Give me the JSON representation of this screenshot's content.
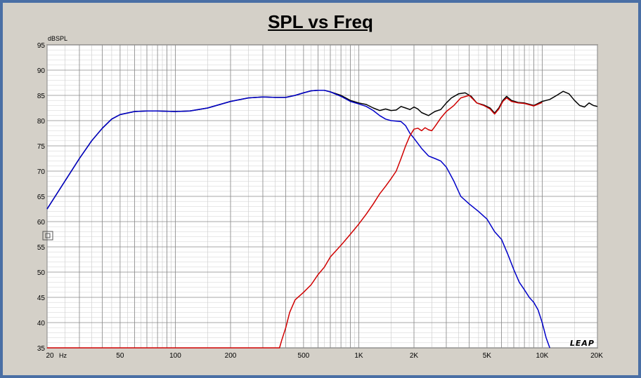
{
  "chart_data": {
    "type": "line",
    "title": "SPL vs Freq",
    "ylabel": "dBSPL",
    "xunit": "Hz",
    "x_scale": "log",
    "xlim": [
      20,
      20000
    ],
    "ylim": [
      35,
      95
    ],
    "grid": true,
    "yticks": [
      35,
      40,
      45,
      50,
      55,
      60,
      65,
      70,
      75,
      80,
      85,
      90,
      95
    ],
    "xticks": [
      {
        "value": 20,
        "label": "20"
      },
      {
        "value": 50,
        "label": "50"
      },
      {
        "value": 100,
        "label": "100"
      },
      {
        "value": 200,
        "label": "200"
      },
      {
        "value": 500,
        "label": "500"
      },
      {
        "value": 1000,
        "label": "1K"
      },
      {
        "value": 2000,
        "label": "2K"
      },
      {
        "value": 5000,
        "label": "5K"
      },
      {
        "value": 10000,
        "label": "10K"
      },
      {
        "value": 20000,
        "label": "20K"
      }
    ],
    "series": [
      {
        "color": "#000000",
        "points": [
          [
            20,
            62.5
          ],
          [
            25,
            68
          ],
          [
            30,
            72.5
          ],
          [
            35,
            76
          ],
          [
            40,
            78.5
          ],
          [
            45,
            80.3
          ],
          [
            50,
            81.2
          ],
          [
            60,
            81.8
          ],
          [
            70,
            81.9
          ],
          [
            80,
            81.9
          ],
          [
            100,
            81.8
          ],
          [
            120,
            81.9
          ],
          [
            150,
            82.5
          ],
          [
            200,
            83.8
          ],
          [
            250,
            84.5
          ],
          [
            300,
            84.7
          ],
          [
            350,
            84.6
          ],
          [
            400,
            84.6
          ],
          [
            450,
            85.0
          ],
          [
            500,
            85.5
          ],
          [
            550,
            85.9
          ],
          [
            600,
            86.0
          ],
          [
            650,
            86.0
          ],
          [
            700,
            85.7
          ],
          [
            800,
            85.0
          ],
          [
            900,
            84.0
          ],
          [
            1000,
            83.5
          ],
          [
            1100,
            83.2
          ],
          [
            1200,
            82.5
          ],
          [
            1300,
            82.0
          ],
          [
            1400,
            82.3
          ],
          [
            1500,
            82.0
          ],
          [
            1600,
            82.1
          ],
          [
            1700,
            82.8
          ],
          [
            1800,
            82.5
          ],
          [
            1900,
            82.2
          ],
          [
            2000,
            82.7
          ],
          [
            2100,
            82.3
          ],
          [
            2200,
            81.6
          ],
          [
            2400,
            81.0
          ],
          [
            2600,
            81.8
          ],
          [
            2800,
            82.2
          ],
          [
            3000,
            83.5
          ],
          [
            3200,
            84.5
          ],
          [
            3500,
            85.3
          ],
          [
            3800,
            85.5
          ],
          [
            4100,
            84.8
          ],
          [
            4400,
            83.5
          ],
          [
            4800,
            83.1
          ],
          [
            5200,
            82.5
          ],
          [
            5500,
            81.5
          ],
          [
            5800,
            82.5
          ],
          [
            6100,
            84.0
          ],
          [
            6400,
            84.8
          ],
          [
            6800,
            84.0
          ],
          [
            7400,
            83.6
          ],
          [
            8000,
            83.5
          ],
          [
            9000,
            83.0
          ],
          [
            10000,
            83.8
          ],
          [
            11000,
            84.2
          ],
          [
            12000,
            85.0
          ],
          [
            13000,
            85.8
          ],
          [
            14000,
            85.3
          ],
          [
            15000,
            84.0
          ],
          [
            16000,
            83.0
          ],
          [
            17000,
            82.7
          ],
          [
            18000,
            83.5
          ],
          [
            19000,
            83.0
          ],
          [
            20000,
            82.8
          ]
        ]
      },
      {
        "color": "#0000c8",
        "points": [
          [
            20,
            62.5
          ],
          [
            25,
            68
          ],
          [
            30,
            72.5
          ],
          [
            35,
            76
          ],
          [
            40,
            78.5
          ],
          [
            45,
            80.3
          ],
          [
            50,
            81.2
          ],
          [
            60,
            81.8
          ],
          [
            70,
            81.9
          ],
          [
            80,
            81.9
          ],
          [
            100,
            81.8
          ],
          [
            120,
            81.9
          ],
          [
            150,
            82.5
          ],
          [
            200,
            83.8
          ],
          [
            250,
            84.5
          ],
          [
            300,
            84.7
          ],
          [
            350,
            84.6
          ],
          [
            400,
            84.6
          ],
          [
            450,
            85.0
          ],
          [
            500,
            85.5
          ],
          [
            550,
            85.9
          ],
          [
            600,
            86.0
          ],
          [
            650,
            86.0
          ],
          [
            700,
            85.7
          ],
          [
            800,
            84.8
          ],
          [
            900,
            83.8
          ],
          [
            1000,
            83.3
          ],
          [
            1100,
            82.8
          ],
          [
            1200,
            82.0
          ],
          [
            1300,
            81.0
          ],
          [
            1400,
            80.3
          ],
          [
            1500,
            80.0
          ],
          [
            1700,
            79.8
          ],
          [
            1800,
            79.0
          ],
          [
            1900,
            77.5
          ],
          [
            2000,
            76.5
          ],
          [
            2200,
            74.5
          ],
          [
            2400,
            73.0
          ],
          [
            2600,
            72.5
          ],
          [
            2800,
            72.0
          ],
          [
            3000,
            70.8
          ],
          [
            3300,
            68.0
          ],
          [
            3600,
            65.0
          ],
          [
            4000,
            63.5
          ],
          [
            4500,
            62.0
          ],
          [
            5000,
            60.5
          ],
          [
            5500,
            58.0
          ],
          [
            6000,
            56.5
          ],
          [
            6500,
            53.5
          ],
          [
            7000,
            50.5
          ],
          [
            7500,
            48.0
          ],
          [
            8000,
            46.5
          ],
          [
            8500,
            45.0
          ],
          [
            9000,
            44.0
          ],
          [
            9500,
            42.5
          ],
          [
            10000,
            40.0
          ],
          [
            10500,
            37.0
          ],
          [
            11000,
            35.0
          ]
        ]
      },
      {
        "color": "#d00000",
        "points": [
          [
            20,
            35
          ],
          [
            100,
            35
          ],
          [
            200,
            35
          ],
          [
            370,
            35
          ],
          [
            380,
            36.5
          ],
          [
            400,
            39
          ],
          [
            420,
            42
          ],
          [
            450,
            44.5
          ],
          [
            500,
            46
          ],
          [
            550,
            47.5
          ],
          [
            600,
            49.5
          ],
          [
            650,
            51
          ],
          [
            700,
            53
          ],
          [
            800,
            55.3
          ],
          [
            900,
            57.5
          ],
          [
            1000,
            59.5
          ],
          [
            1100,
            61.5
          ],
          [
            1200,
            63.5
          ],
          [
            1300,
            65.5
          ],
          [
            1400,
            67
          ],
          [
            1500,
            68.5
          ],
          [
            1600,
            70
          ],
          [
            1700,
            72.5
          ],
          [
            1800,
            75
          ],
          [
            1900,
            77
          ],
          [
            2000,
            78.3
          ],
          [
            2100,
            78.5
          ],
          [
            2200,
            78.0
          ],
          [
            2300,
            78.6
          ],
          [
            2400,
            78.2
          ],
          [
            2500,
            78.0
          ],
          [
            2600,
            78.8
          ],
          [
            2800,
            80.5
          ],
          [
            3000,
            81.8
          ],
          [
            3300,
            83.0
          ],
          [
            3600,
            84.5
          ],
          [
            4000,
            85.0
          ],
          [
            4400,
            83.5
          ],
          [
            4800,
            83.0
          ],
          [
            5200,
            82.3
          ],
          [
            5500,
            81.3
          ],
          [
            5800,
            82.3
          ],
          [
            6100,
            83.8
          ],
          [
            6400,
            84.5
          ],
          [
            6800,
            83.8
          ],
          [
            7400,
            83.5
          ],
          [
            8000,
            83.4
          ],
          [
            9000,
            82.9
          ],
          [
            10000,
            83.6
          ]
        ]
      }
    ]
  },
  "logo_text": "LEAP"
}
